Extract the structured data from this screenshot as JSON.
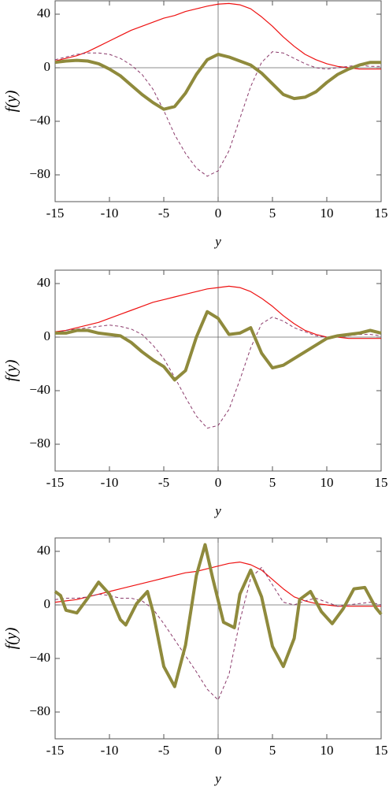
{
  "chart_data": [
    {
      "type": "line",
      "xlabel": "y",
      "ylabel": "f(y)",
      "x": [
        -15,
        -14,
        -13,
        -12,
        -11,
        -10,
        -9,
        -8,
        -7,
        -6,
        -5,
        -4,
        -3,
        -2,
        -1,
        0,
        1,
        2,
        3,
        4,
        5,
        6,
        7,
        8,
        9,
        10,
        11,
        12,
        13,
        14,
        15
      ],
      "series": [
        {
          "color": "#ee1111",
          "style": "solid",
          "width": 1.2,
          "values": [
            5,
            7,
            9,
            12,
            16,
            20,
            24,
            28,
            31,
            34,
            37,
            39,
            42,
            44,
            46,
            47.5,
            48,
            47,
            44,
            38,
            31,
            23,
            16,
            10,
            6,
            3,
            1,
            0,
            -1,
            -1,
            -1
          ]
        },
        {
          "color": "#8b3a6b",
          "style": "dashed",
          "width": 1,
          "values": [
            6,
            8,
            10,
            11,
            11,
            10,
            7,
            2,
            -5,
            -16,
            -32,
            -50,
            -64,
            -75,
            -81,
            -77,
            -62,
            -38,
            -14,
            4,
            12,
            11,
            7,
            3,
            0,
            -1,
            0,
            1,
            2,
            1,
            1
          ]
        },
        {
          "color": "#8f8a3c",
          "style": "solid",
          "width": 4,
          "values": [
            4,
            5,
            5.5,
            5,
            3,
            -1,
            -6,
            -13,
            -20,
            -26,
            -31,
            -29,
            -19,
            -5,
            6,
            10,
            8,
            5,
            2,
            -4,
            -12,
            -20,
            -23,
            -22,
            -18,
            -11,
            -5,
            -1,
            2,
            4,
            4
          ]
        }
      ],
      "xlim": [
        -15,
        15
      ],
      "ylim": [
        -100,
        50
      ],
      "xticks": [
        -15,
        -10,
        -5,
        0,
        5,
        10,
        15
      ],
      "yticks": [
        40,
        0,
        -40,
        -80
      ]
    },
    {
      "type": "line",
      "xlabel": "y",
      "ylabel": "f(y)",
      "x": [
        -15,
        -14,
        -13,
        -12,
        -11,
        -10,
        -9,
        -8,
        -7,
        -6,
        -5,
        -4,
        -3,
        -2,
        -1,
        0,
        1,
        2,
        3,
        4,
        5,
        6,
        7,
        8,
        9,
        10,
        11,
        12,
        13,
        14,
        15
      ],
      "series": [
        {
          "color": "#ee1111",
          "style": "solid",
          "width": 1.2,
          "values": [
            4,
            5,
            7,
            9,
            11,
            14,
            17,
            20,
            23,
            26,
            28,
            30,
            32,
            34,
            36,
            37,
            38,
            37,
            34,
            29,
            23,
            16,
            10,
            5,
            2,
            0,
            0,
            -1,
            -1,
            -1,
            -1
          ]
        },
        {
          "color": "#8b3a6b",
          "style": "dashed",
          "width": 1,
          "values": [
            3,
            5,
            6,
            7,
            8,
            9,
            8,
            6,
            2,
            -6,
            -16,
            -30,
            -45,
            -59,
            -68,
            -66,
            -54,
            -32,
            -8,
            10,
            15,
            12,
            7,
            4,
            1,
            0,
            0,
            1,
            2,
            2,
            1
          ]
        },
        {
          "color": "#8f8a3c",
          "style": "solid",
          "width": 4,
          "values": [
            3,
            3,
            5,
            5,
            3,
            2,
            1,
            -4,
            -11,
            -17,
            -22,
            -32,
            -25,
            0,
            19,
            14,
            2,
            3,
            7,
            -12,
            -23,
            -21,
            -16,
            -11,
            -6,
            -1,
            1,
            2,
            3,
            5,
            3
          ]
        }
      ],
      "xlim": [
        -15,
        15
      ],
      "ylim": [
        -100,
        50
      ],
      "xticks": [
        -15,
        -10,
        -5,
        0,
        5,
        10,
        15
      ],
      "yticks": [
        40,
        0,
        -40,
        -80
      ]
    },
    {
      "type": "line",
      "xlabel": "y",
      "ylabel": "f(y)",
      "x": [
        -15,
        -14,
        -13,
        -12,
        -11,
        -10,
        -9,
        -8,
        -7,
        -6,
        -5,
        -4,
        -3,
        -2,
        -1,
        0,
        1,
        2,
        3,
        4,
        5,
        6,
        7,
        8,
        9,
        10,
        11,
        12,
        13,
        14,
        15
      ],
      "series": [
        {
          "color": "#ee1111",
          "style": "solid",
          "width": 1.2,
          "values": [
            2,
            3,
            4,
            6,
            8,
            10,
            12,
            14,
            16,
            18,
            20,
            22,
            24,
            25,
            27,
            29,
            31,
            32,
            30,
            26,
            19,
            12,
            6,
            3,
            1,
            0,
            -1,
            -1,
            -1,
            -1,
            -1
          ]
        },
        {
          "color": "#8b3a6b",
          "style": "dashed",
          "width": 1,
          "values": [
            4,
            5,
            5,
            6,
            8,
            7,
            5,
            5,
            3,
            -3,
            -14,
            -26,
            -38,
            -50,
            -63,
            -71,
            -52,
            -12,
            20,
            28,
            15,
            2,
            0,
            3,
            5,
            2,
            -1,
            0,
            1,
            2,
            0
          ]
        },
        {
          "color": "#8f8a3c",
          "style": "solid",
          "width": 4,
          "x": [
            -15,
            -14.5,
            -14,
            -13,
            -12,
            -11,
            -10,
            -9,
            -8.5,
            -7.5,
            -6.5,
            -6,
            -5,
            -4,
            -3,
            -2,
            -1.2,
            -0.5,
            0.5,
            1.5,
            2,
            3,
            4,
            5,
            6,
            7,
            7.5,
            8.5,
            9.5,
            10.5,
            11.5,
            12.5,
            13.5,
            14.5,
            15
          ],
          "values": [
            10,
            7,
            -4,
            -6,
            5,
            17,
            8,
            -11,
            -15,
            1,
            10,
            -5,
            -46,
            -61,
            -30,
            22,
            45,
            20,
            -13,
            -17,
            8,
            26,
            6,
            -31,
            -46,
            -25,
            4,
            10,
            -5,
            -14,
            -3,
            12,
            13,
            -2,
            -7
          ]
        }
      ],
      "xlim": [
        -15,
        15
      ],
      "ylim": [
        -100,
        50
      ],
      "xticks": [
        -15,
        -10,
        -5,
        0,
        5,
        10,
        15
      ],
      "yticks": [
        40,
        0,
        -40,
        -80
      ]
    }
  ]
}
